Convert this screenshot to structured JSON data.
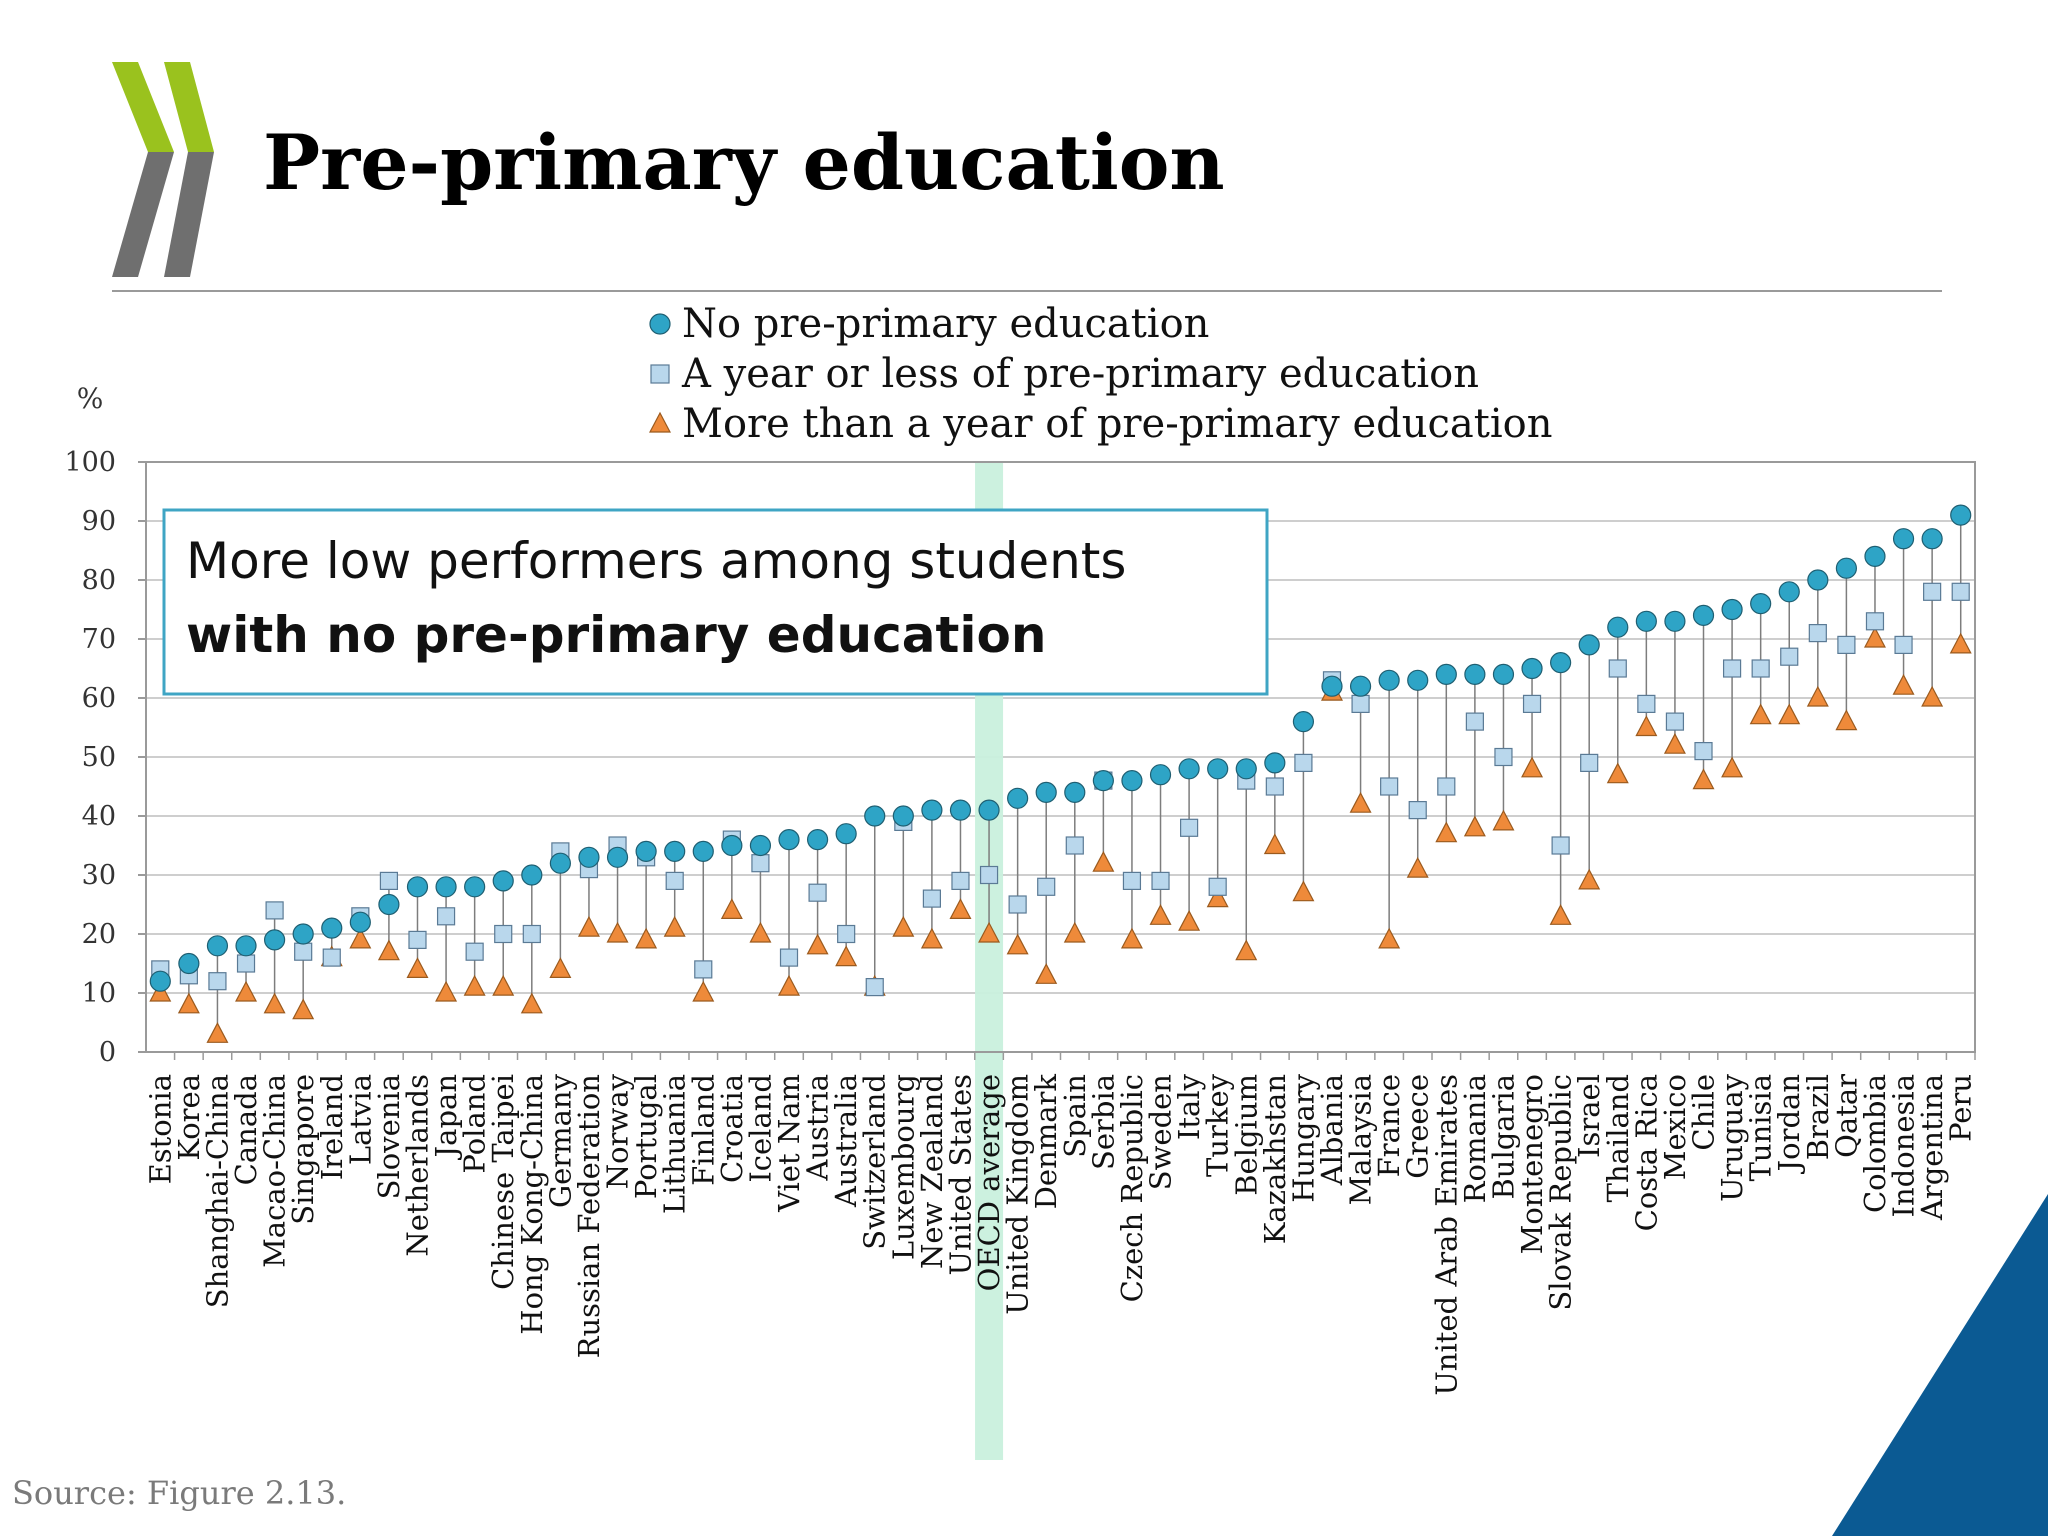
{
  "title": "Pre-primary education",
  "source": "Source: Figure 2.13.",
  "colors": {
    "no_pre": "#2ea4c6",
    "year_or_less": "#b9d7ec",
    "more_than_year": "#ee8a3a",
    "highlight": "#c9f0dd",
    "logo_green": "#9ac21e",
    "logo_gray": "#6f6f6f",
    "corner_blue": "#0b5a93"
  },
  "chart_data": {
    "type": "scatter",
    "ylabel": "%",
    "ylim": [
      0,
      100
    ],
    "yticks": [
      0,
      10,
      20,
      30,
      40,
      50,
      60,
      70,
      80,
      90,
      100
    ],
    "grid": true,
    "legend_position": "top-center",
    "highlight_category": "OECD average",
    "annotation": {
      "line1": "More low performers among students",
      "line2": "with no pre-primary education"
    },
    "categories": [
      "Estonia",
      "Korea",
      "Shanghai-China",
      "Canada",
      "Macao-China",
      "Singapore",
      "Ireland",
      "Latvia",
      "Slovenia",
      "Netherlands",
      "Japan",
      "Poland",
      "Chinese Taipei",
      "Hong Kong-China",
      "Germany",
      "Russian Federation",
      "Norway",
      "Portugal",
      "Lithuania",
      "Finland",
      "Croatia",
      "Iceland",
      "Viet Nam",
      "Austria",
      "Australia",
      "Switzerland",
      "Luxembourg",
      "New Zealand",
      "United States",
      "OECD average",
      "United Kingdom",
      "Denmark",
      "Spain",
      "Serbia",
      "Czech Republic",
      "Sweden",
      "Italy",
      "Turkey",
      "Belgium",
      "Kazakhstan",
      "Hungary",
      "Albania",
      "Malaysia",
      "France",
      "Greece",
      "United Arab Emirates",
      "Romania",
      "Bulgaria",
      "Montenegro",
      "Slovak Republic",
      "Israel",
      "Thailand",
      "Costa Rica",
      "Mexico",
      "Chile",
      "Uruguay",
      "Tunisia",
      "Jordan",
      "Brazil",
      "Qatar",
      "Colombia",
      "Indonesia",
      "Argentina",
      "Peru"
    ],
    "series": [
      {
        "name": "No pre-primary education",
        "marker": "circle",
        "values": [
          12,
          15,
          18,
          18,
          19,
          20,
          21,
          22,
          25,
          28,
          28,
          28,
          29,
          30,
          32,
          33,
          33,
          34,
          34,
          34,
          35,
          35,
          36,
          36,
          37,
          40,
          40,
          41,
          41,
          41,
          43,
          44,
          44,
          46,
          46,
          47,
          48,
          48,
          48,
          49,
          56,
          62,
          62,
          63,
          63,
          64,
          64,
          64,
          65,
          66,
          69,
          72,
          73,
          73,
          74,
          75,
          76,
          78,
          80,
          82,
          84,
          87,
          87,
          91
        ]
      },
      {
        "name": "A year or less of pre-primary education",
        "marker": "square",
        "values": [
          14,
          13,
          12,
          15,
          24,
          17,
          16,
          23,
          29,
          19,
          23,
          17,
          20,
          20,
          34,
          31,
          35,
          33,
          29,
          14,
          36,
          32,
          16,
          27,
          20,
          11,
          39,
          26,
          29,
          30,
          25,
          28,
          35,
          46,
          29,
          29,
          38,
          28,
          46,
          45,
          49,
          63,
          59,
          45,
          41,
          45,
          56,
          50,
          59,
          35,
          49,
          65,
          59,
          56,
          51,
          65,
          65,
          67,
          71,
          69,
          73,
          69,
          78,
          78
        ]
      },
      {
        "name": "More than a year of pre-primary education",
        "marker": "triangle",
        "values": [
          10,
          8,
          3,
          10,
          8,
          7,
          16,
          19,
          17,
          14,
          10,
          11,
          11,
          8,
          14,
          21,
          20,
          19,
          21,
          10,
          24,
          20,
          11,
          18,
          16,
          11,
          21,
          19,
          24,
          20,
          18,
          13,
          20,
          32,
          19,
          23,
          22,
          26,
          17,
          35,
          27,
          61,
          42,
          19,
          31,
          37,
          38,
          39,
          48,
          23,
          29,
          47,
          55,
          52,
          46,
          48,
          57,
          57,
          60,
          56,
          70,
          62,
          60,
          69
        ]
      }
    ]
  }
}
